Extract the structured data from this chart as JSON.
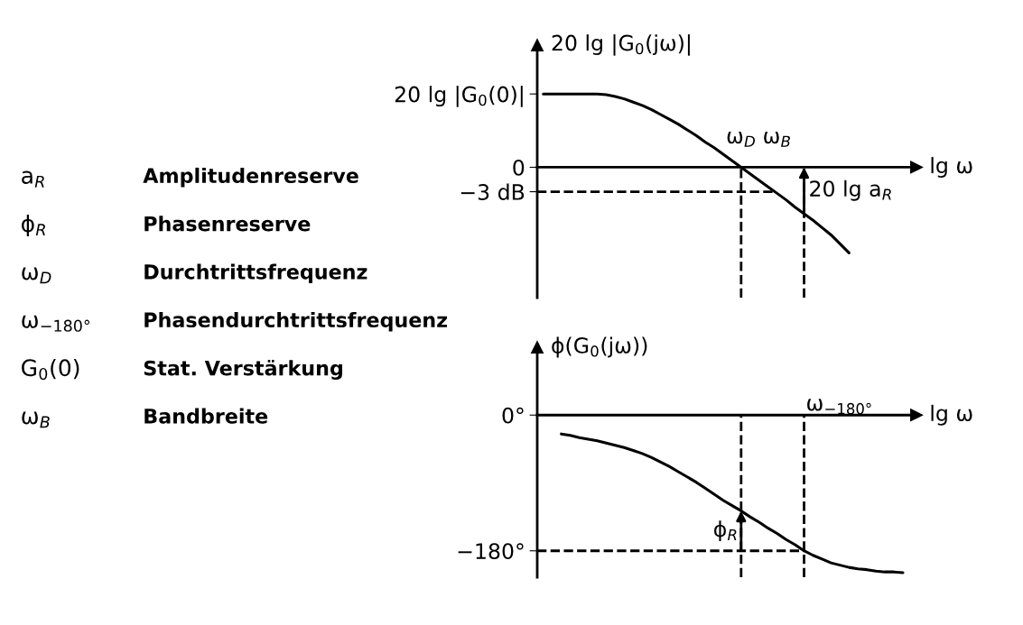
{
  "chart_data": [
    {
      "type": "other",
      "annotations": [
        "a$_{R}$",
        "Amplitudenreserve",
        "ϕ$_{R}$",
        "Phasenreserve",
        "ω$_{D}$",
        "Durchtrittsfrequenz",
        "ω$_{−180°}$",
        "Phasendurchtrittsfrequenz",
        "G$_{0}$(0)",
        "Stat. Verstärkung",
        "ω$_{B}$",
        "Bandbreite"
      ]
    },
    {
      "type": "line",
      "ylabel": "20 lg |G$_{0}$(jω)|",
      "xlabel": "lg ω",
      "line_style": "solid",
      "categories": [
        null,
        null,
        null,
        null,
        null,
        null,
        null,
        null,
        null,
        null,
        null,
        null,
        null,
        null,
        null,
        null,
        null,
        null,
        null,
        null,
        null,
        null,
        null,
        null,
        null,
        null,
        null,
        null,
        "ω$_{D}$",
        null,
        null,
        null,
        "ω$_{B}$",
        null,
        null,
        null,
        null,
        null,
        null,
        null,
        null,
        null,
        null,
        null,
        null,
        null,
        null,
        null
      ],
      "series": [
        {
          "color": "#000000",
          "values": [
            null,
            null,
            null,
            null,
            null,
            null,
            9,
            9,
            9,
            9,
            9,
            9,
            9,
            8.9,
            8.7,
            8.4,
            8.0,
            7.6,
            7.1,
            6.5,
            5.9,
            5.3,
            4.6,
            3.9,
            3.1,
            2.4,
            1.6,
            0.8,
            0,
            -0.8,
            -1.6,
            -2.4,
            -3.2,
            -4.0,
            -4.9,
            -5.7,
            -6.5,
            -7.4,
            -8.3,
            -9.4,
            -10.5,
            null,
            null,
            null,
            null,
            null,
            null,
            null
          ]
        }
      ],
      "ylim": [
        -16,
        15
      ],
      "yticks": [
        {
          "value": 9,
          "label": "20 lg |G$_{0}$(0)|"
        },
        0,
        {
          "value": -3,
          "label": "−3 dB"
        }
      ],
      "ref_lines": [
        {
          "axis": "y",
          "value": -3,
          "line_style": "dashed",
          "color": "#000000"
        },
        {
          "axis": "x",
          "value": "ω$_{D}$",
          "line_style": "dashed",
          "color": "#000000"
        }
      ],
      "annotations": [
        "20 lg a$_{R}$"
      ]
    },
    {
      "type": "line",
      "ylabel": "ϕ(G$_{0}$(jω))",
      "xlabel": "lg ω",
      "line_style": "solid",
      "categories": [
        null,
        null,
        null,
        null,
        null,
        null,
        null,
        null,
        null,
        null,
        null,
        null,
        null,
        null,
        null,
        null,
        null,
        null,
        null,
        null,
        null,
        null,
        null,
        null,
        null,
        null,
        null,
        null,
        null,
        null,
        null,
        null,
        null,
        null,
        null,
        null,
        null,
        null,
        null,
        null,
        null,
        null,
        null,
        null,
        null,
        null,
        null,
        null
      ],
      "series": [
        {
          "color": "#000000",
          "values": [
            null,
            null,
            null,
            null,
            null,
            null,
            null,
            null,
            -25,
            -27,
            -30,
            -32,
            -34,
            -37,
            -40,
            -43,
            -47,
            -51,
            -56,
            -62,
            -68,
            -75,
            -82,
            -89,
            -97,
            -105,
            -113,
            -120,
            -127,
            -135,
            -142,
            -150,
            -157,
            -165,
            -172,
            -180,
            -186,
            -191,
            -196,
            -199,
            -202,
            -204,
            -205,
            -207,
            -208,
            -208,
            -209,
            null
          ]
        }
      ],
      "ylim": [
        -215,
        90
      ],
      "yticks": [
        {
          "value": 0,
          "label": "0°"
        },
        {
          "value": -180,
          "label": "−180°"
        }
      ],
      "ref_lines": [
        {
          "axis": "y",
          "value": -180,
          "line_style": "dashed",
          "color": "#000000"
        }
      ],
      "annotations": [
        "ϕ$_{R}$",
        "ω$_{−180°}$"
      ]
    }
  ]
}
